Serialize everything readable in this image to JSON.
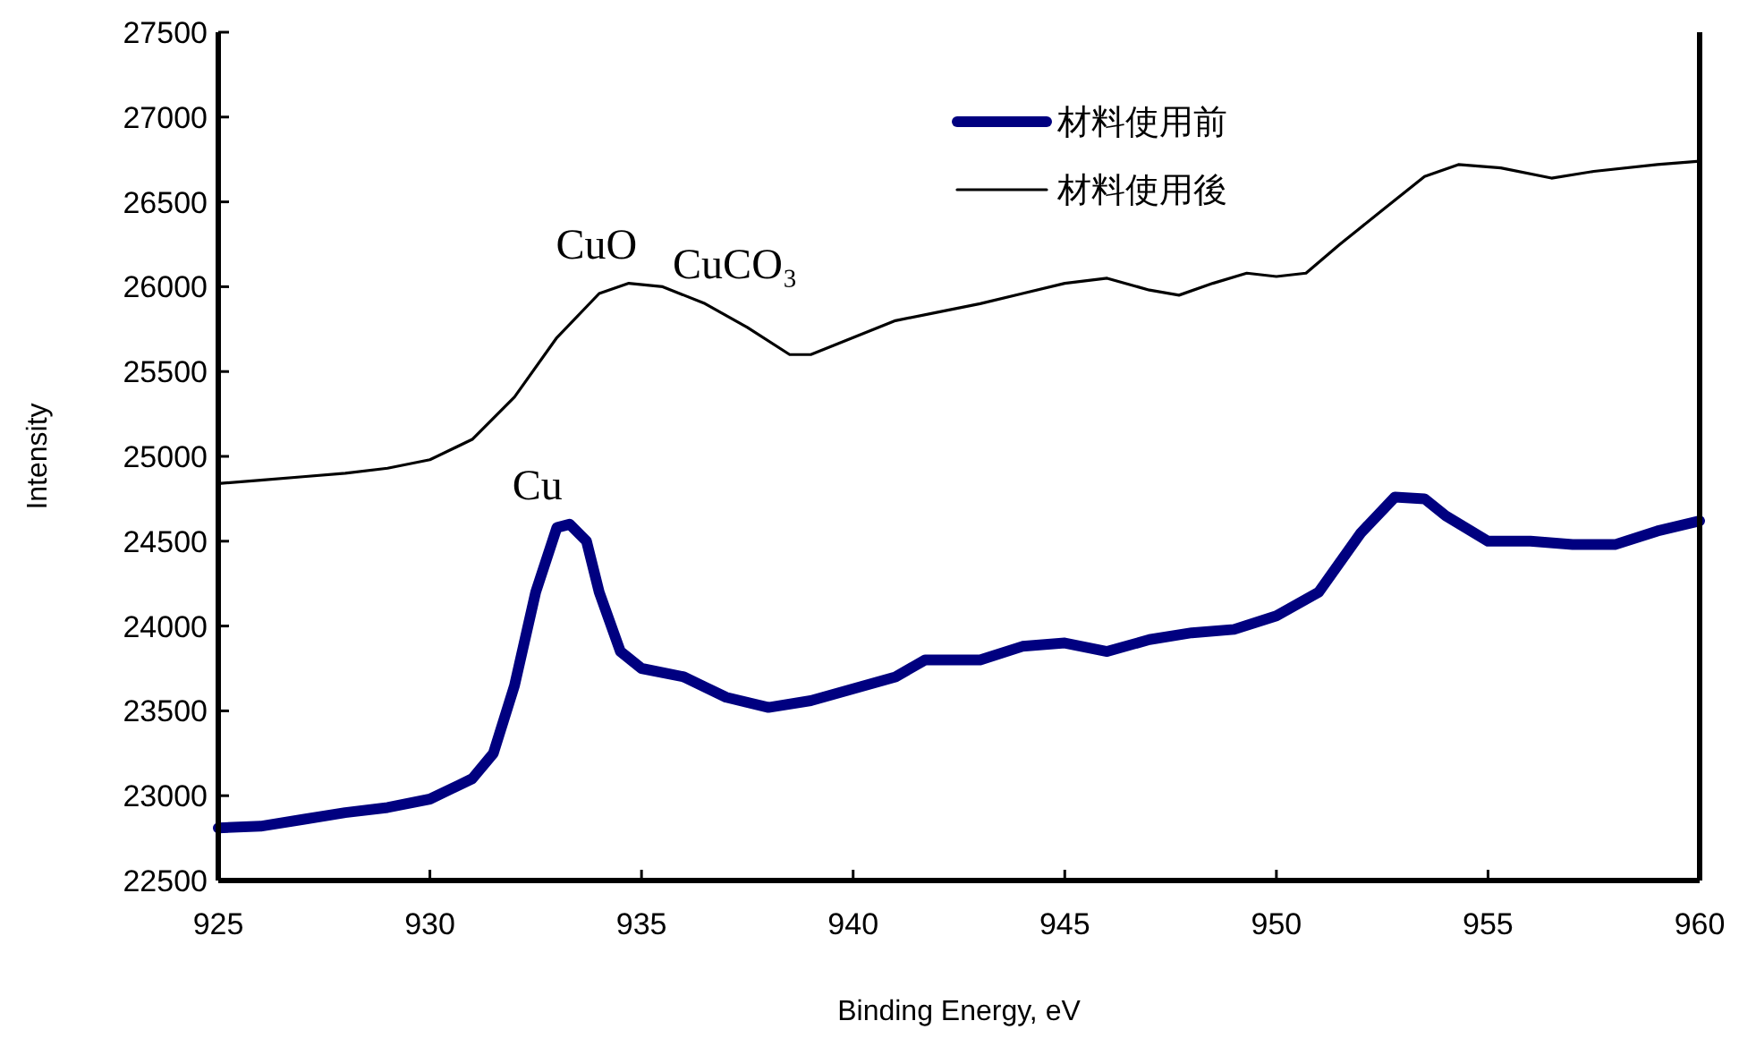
{
  "chart_data": {
    "type": "line",
    "xlabel": "Binding Energy, eV",
    "ylabel": "Intensity",
    "xlim": [
      925,
      960
    ],
    "xticks": [
      925,
      930,
      935,
      940,
      945,
      950,
      955,
      960
    ],
    "ylim": [
      22500,
      27500
    ],
    "yticks": [
      22500,
      23000,
      23500,
      24000,
      24500,
      25000,
      25500,
      26000,
      26500,
      27000,
      27500
    ],
    "grid": false,
    "legend": "top right",
    "series": [
      {
        "name": "材料使用前",
        "color": "#000080",
        "x": [
          925,
          926,
          927,
          928,
          929,
          930,
          931,
          931.5,
          932,
          932.5,
          933,
          933.3,
          933.7,
          934,
          934.5,
          935,
          936,
          937,
          938,
          939,
          940,
          941,
          941.7,
          943,
          944,
          945,
          946,
          947,
          948,
          949,
          950,
          951,
          952,
          952.8,
          953.5,
          954,
          955,
          956,
          957,
          958,
          959,
          960
        ],
        "values": [
          22810,
          22820,
          22860,
          22900,
          22930,
          22980,
          23100,
          23250,
          23650,
          24200,
          24580,
          24600,
          24500,
          24200,
          23850,
          23750,
          23700,
          23580,
          23520,
          23560,
          23630,
          23700,
          23800,
          23800,
          23880,
          23900,
          23850,
          23920,
          23960,
          23980,
          24060,
          24200,
          24550,
          24760,
          24750,
          24650,
          24500,
          24500,
          24480,
          24480,
          24560,
          24620
        ]
      },
      {
        "name": "材料使用後",
        "color": "#000000",
        "x": [
          925,
          926,
          927,
          928,
          929,
          930,
          931,
          932,
          933,
          934,
          934.7,
          935.5,
          936.5,
          937.5,
          938.5,
          939,
          940,
          941,
          942,
          943,
          944,
          945,
          946,
          947,
          947.7,
          948.5,
          949.3,
          950,
          950.7,
          951.5,
          952.5,
          953.5,
          954.3,
          955.3,
          956.5,
          957.5,
          959,
          960
        ],
        "values": [
          24840,
          24860,
          24880,
          24900,
          24930,
          24980,
          25100,
          25350,
          25700,
          25960,
          26020,
          26000,
          25900,
          25760,
          25600,
          25600,
          25700,
          25800,
          25850,
          25900,
          25960,
          26020,
          26050,
          25980,
          25950,
          26020,
          26080,
          26060,
          26080,
          26250,
          26450,
          26650,
          26720,
          26700,
          26640,
          26680,
          26720,
          26740
        ]
      }
    ],
    "annotations": [
      {
        "text": "CuO",
        "x": 934.7,
        "y": 26020
      },
      {
        "text": "CuCO₃",
        "x": 936.5,
        "y": 25900
      },
      {
        "text": "Cu",
        "x": 933.3,
        "y": 24600
      }
    ]
  }
}
